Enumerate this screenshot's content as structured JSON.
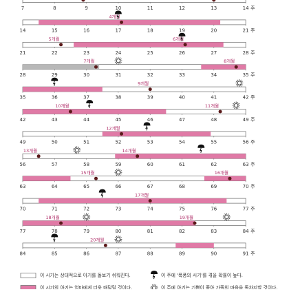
{
  "unit_label": "주",
  "rows": [
    {
      "ticks": [
        7,
        8,
        9,
        10,
        11,
        12,
        13,
        14
      ],
      "segments": [],
      "months": [
        {
          "week": 8.9,
          "label": ""
        },
        {
          "week": 13,
          "label": ""
        }
      ],
      "storms": [],
      "suns": []
    },
    {
      "ticks": [
        14,
        15,
        16,
        17,
        18,
        19,
        20,
        21
      ],
      "segments": [
        {
          "start": 14.5,
          "end": 20.2,
          "kind": "pink"
        }
      ],
      "months": [
        {
          "week": 17.1,
          "label": "4개월"
        }
      ],
      "storms": [
        17
      ],
      "suns": []
    },
    {
      "ticks": [
        21,
        22,
        23,
        24,
        25,
        26,
        27,
        28
      ],
      "segments": [
        {
          "start": 22.6,
          "end": 27.3,
          "kind": "pink"
        }
      ],
      "months": [
        {
          "week": 22.2,
          "label": "5개월"
        },
        {
          "week": 26.1,
          "label": "6개월"
        }
      ],
      "storms": [
        26
      ],
      "suns": []
    },
    {
      "ticks": [
        28,
        29,
        30,
        31,
        32,
        33,
        34,
        35
      ],
      "segments": [
        {
          "start": 28,
          "end": 30.4,
          "kind": "gray"
        },
        {
          "start": 33.6,
          "end": 35,
          "kind": "pink"
        }
      ],
      "months": [
        {
          "week": 30.3,
          "label": "7개월"
        },
        {
          "week": 34.7,
          "label": "8개월"
        }
      ],
      "storms": [],
      "suns": [
        31
      ]
    },
    {
      "ticks": [
        35,
        36,
        37,
        38,
        39,
        40,
        41,
        42
      ],
      "segments": [
        {
          "start": 35,
          "end": 37.5,
          "kind": "pink"
        }
      ],
      "months": [
        {
          "week": 39,
          "label": "9개월"
        }
      ],
      "storms": [
        36
      ],
      "suns": [
        41.8
      ]
    },
    {
      "ticks": [
        42,
        43,
        44,
        45,
        46,
        47,
        48,
        49
      ],
      "segments": [
        {
          "start": 42,
          "end": 46.5,
          "kind": "pink"
        }
      ],
      "months": [
        {
          "week": 43.5,
          "label": "10개월"
        },
        {
          "week": 48.2,
          "label": "11개월"
        }
      ],
      "storms": [
        44.1
      ],
      "suns": [
        48.7
      ]
    },
    {
      "ticks": [
        49,
        50,
        51,
        52,
        53,
        54,
        55,
        56
      ],
      "segments": [
        {
          "start": 51.5,
          "end": 54.9,
          "kind": "pink"
        }
      ],
      "months": [
        {
          "week": 52.1,
          "label": "12개월"
        }
      ],
      "storms": [
        52.9
      ],
      "suns": []
    },
    {
      "ticks": [
        56,
        57,
        58,
        59,
        60,
        61,
        62,
        63
      ],
      "segments": [
        {
          "start": 58.9,
          "end": 63,
          "kind": "pink"
        }
      ],
      "months": [
        {
          "week": 56.5,
          "label": "13개월"
        },
        {
          "week": 59.6,
          "label": "14개월"
        }
      ],
      "storms": [
        61.6
      ],
      "suns": [
        57.7
      ]
    },
    {
      "ticks": [
        63,
        64,
        65,
        66,
        67,
        68,
        69,
        70
      ],
      "segments": [
        {
          "start": 63,
          "end": 64.5,
          "kind": "pink"
        },
        {
          "start": 68.7,
          "end": 70,
          "kind": "pink"
        }
      ],
      "months": [
        {
          "week": 65.3,
          "label": "15개월"
        },
        {
          "week": 69.5,
          "label": "16개월"
        }
      ],
      "storms": [],
      "suns": [
        66
      ]
    },
    {
      "ticks": [
        70,
        71,
        72,
        73,
        74,
        75,
        76,
        77
      ],
      "segments": [
        {
          "start": 70.5,
          "end": 76.4,
          "kind": "pink"
        }
      ],
      "months": [
        {
          "week": 74,
          "label": "17개월"
        }
      ],
      "storms": [
        72.5
      ],
      "suns": []
    },
    {
      "ticks": [
        77,
        78,
        79,
        80,
        81,
        82,
        83,
        84
      ],
      "segments": [
        {
          "start": 77,
          "end": 82.4,
          "kind": "pink"
        }
      ],
      "months": [
        {
          "week": 78.2,
          "label": "18개월"
        },
        {
          "week": 82.4,
          "label": "19개월"
        }
      ],
      "storms": [],
      "suns": [
        79,
        83.4
      ]
    },
    {
      "ticks": [
        84,
        85,
        86,
        87,
        88,
        89,
        90,
        91
      ],
      "segments": [
        {
          "start": 88.8,
          "end": 90,
          "kind": "pink"
        }
      ],
      "months": [
        {
          "week": 86.6,
          "label": "20개월"
        }
      ],
      "storms": [
        85
      ],
      "suns": [
        87
      ]
    }
  ],
  "legend": [
    {
      "kind": "white",
      "text": "이 시기는 상대적으로 아기를 돌보기 쉬워진다."
    },
    {
      "kind": "storm",
      "text": "이 주에 '폭풍의 시기'를 겪을 확률이 높다."
    },
    {
      "kind": "pink",
      "text": "이 시기의 아기는 엄마에게 더욱 매달릴 것이다."
    },
    {
      "kind": "sun",
      "text": "이 주에 아기는 기쁨이 좋아 가족의 마음을 독차지할 것이다."
    }
  ]
}
